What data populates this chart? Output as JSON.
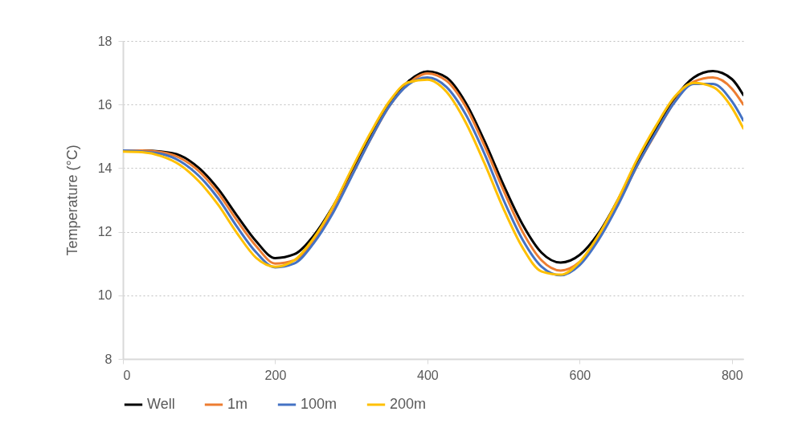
{
  "chart_data": {
    "type": "line",
    "ylabel": "Temperature (°C)",
    "x": [
      0,
      25,
      50,
      75,
      100,
      125,
      150,
      175,
      200,
      225,
      250,
      275,
      300,
      325,
      350,
      375,
      400,
      425,
      450,
      475,
      500,
      525,
      550,
      575,
      600,
      625,
      650,
      675,
      700,
      725,
      750,
      775,
      800,
      815
    ],
    "xlim": [
      0,
      815
    ],
    "xticks": [
      0,
      200,
      400,
      600,
      800
    ],
    "ylim": [
      8,
      18
    ],
    "yticks": [
      8,
      10,
      12,
      14,
      16,
      18
    ],
    "grid": "y",
    "legend": "bottom",
    "line_style": "solid",
    "series": [
      {
        "name": "Well",
        "color": "#000000",
        "values": [
          14.55,
          14.55,
          14.52,
          14.4,
          14.0,
          13.35,
          12.5,
          11.7,
          11.17,
          11.29,
          11.86,
          12.76,
          13.87,
          15.01,
          16.02,
          16.73,
          17.04,
          16.85,
          16.07,
          14.85,
          13.47,
          12.23,
          11.34,
          11.03,
          11.27,
          11.96,
          12.99,
          14.16,
          15.2,
          16.2,
          16.85,
          17.05,
          16.8,
          16.3
        ]
      },
      {
        "name": "1m",
        "color": "#ed7d31",
        "values": [
          14.55,
          14.55,
          14.5,
          14.32,
          13.9,
          13.22,
          12.35,
          11.55,
          11.0,
          11.1,
          11.7,
          12.6,
          13.75,
          14.9,
          15.95,
          16.65,
          16.98,
          16.75,
          15.95,
          14.7,
          13.3,
          12.0,
          11.1,
          10.78,
          11.05,
          11.8,
          12.85,
          14.05,
          15.1,
          16.1,
          16.72,
          16.85,
          16.5,
          16.0
        ]
      },
      {
        "name": "100m",
        "color": "#4472c4",
        "values": [
          14.55,
          14.52,
          14.45,
          14.22,
          13.75,
          13.05,
          12.15,
          11.35,
          10.88,
          11.0,
          11.62,
          12.55,
          13.72,
          14.9,
          15.95,
          16.63,
          16.85,
          16.55,
          15.7,
          14.45,
          13.0,
          11.75,
          10.9,
          10.63,
          10.95,
          11.75,
          12.82,
          14.05,
          15.12,
          16.08,
          16.65,
          16.65,
          16.1,
          15.5
        ]
      },
      {
        "name": "200m",
        "color": "#ffc000",
        "values": [
          14.52,
          14.5,
          14.38,
          14.1,
          13.58,
          12.85,
          11.95,
          11.18,
          10.9,
          11.1,
          11.78,
          12.75,
          13.95,
          15.1,
          16.1,
          16.7,
          16.78,
          16.4,
          15.45,
          14.15,
          12.72,
          11.5,
          10.75,
          10.65,
          11.05,
          11.9,
          13.0,
          14.25,
          15.32,
          16.25,
          16.68,
          16.55,
          15.9,
          15.25
        ]
      }
    ]
  }
}
